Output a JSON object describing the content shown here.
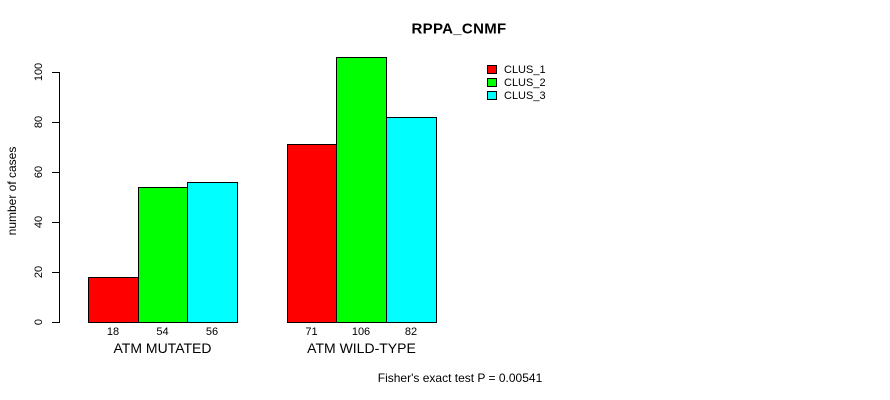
{
  "chart_data": {
    "type": "bar",
    "title": "RPPA_CNMF",
    "xlabel": "",
    "ylabel": "number of cases",
    "categories": [
      "ATM MUTATED",
      "ATM WILD-TYPE"
    ],
    "series": [
      {
        "name": "CLUS_1",
        "color": "#FF0000",
        "values": [
          18,
          71
        ]
      },
      {
        "name": "CLUS_2",
        "color": "#00FF00",
        "values": [
          54,
          106
        ]
      },
      {
        "name": "CLUS_3",
        "color": "#00FFFF",
        "values": [
          56,
          82
        ]
      }
    ],
    "bar_value_labels": [
      [
        18,
        54,
        56
      ],
      [
        71,
        106,
        82
      ]
    ],
    "ylim": [
      0,
      100
    ],
    "yticks": [
      0,
      20,
      40,
      60,
      80,
      100
    ],
    "grid": false,
    "legend_position": "top-right",
    "annotation": "Fisher's exact test P = 0.00541",
    "colors": {
      "background": "#FFFFFF",
      "axis": "#000000",
      "text": "#000000"
    }
  }
}
